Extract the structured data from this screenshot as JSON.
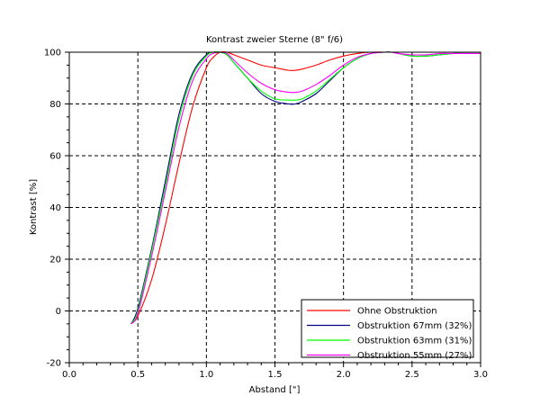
{
  "chart_data": {
    "type": "line",
    "title": "Kontrast zweier Sterne (8\" f/6)",
    "xlabel": "Abstand [\"]",
    "ylabel": "Kontrast [%]",
    "xlim": [
      0,
      3.0
    ],
    "ylim": [
      -20,
      100
    ],
    "xticks": [
      "0.0",
      "0.5",
      "1.0",
      "1.5",
      "2.0",
      "2.5",
      "3.0"
    ],
    "yticks": [
      "-20",
      "0",
      "20",
      "40",
      "60",
      "80",
      "100"
    ],
    "grid": true,
    "legend_position": "bottom-right",
    "series": [
      {
        "name": "Ohne Obstruktion",
        "color": "#ff0000",
        "x": [
          0.45,
          0.5,
          0.6,
          0.7,
          0.8,
          0.9,
          1.0,
          1.05,
          1.1,
          1.15,
          1.2,
          1.3,
          1.4,
          1.5,
          1.6,
          1.65,
          1.7,
          1.8,
          1.9,
          2.0,
          2.1,
          2.2,
          2.3,
          2.4,
          2.5,
          2.6,
          2.7,
          2.8,
          2.9,
          3.0
        ],
        "y": [
          -5,
          -2,
          12,
          33,
          57,
          79,
          94,
          98,
          100,
          100,
          99,
          97,
          95,
          94,
          93,
          93,
          93.5,
          95,
          97,
          98.5,
          99.5,
          100,
          100,
          100,
          100,
          100,
          100,
          100,
          100,
          100
        ]
      },
      {
        "name": "Obstruktion 67mm (32%)",
        "color": "#000080",
        "x": [
          0.45,
          0.5,
          0.6,
          0.7,
          0.8,
          0.9,
          1.0,
          1.05,
          1.1,
          1.15,
          1.2,
          1.3,
          1.4,
          1.5,
          1.6,
          1.65,
          1.7,
          1.8,
          1.9,
          2.0,
          2.1,
          2.2,
          2.3,
          2.35,
          2.4,
          2.5,
          2.6,
          2.7,
          2.8,
          2.9,
          3.0
        ],
        "y": [
          -5,
          1,
          24,
          50,
          76,
          92,
          99,
          100,
          100,
          99,
          96,
          90,
          84,
          81,
          80,
          80,
          81,
          84,
          89,
          94,
          97.5,
          99.5,
          100,
          100,
          99.5,
          98.5,
          98.5,
          99,
          99.5,
          99.5,
          99.5
        ]
      },
      {
        "name": "Obstruktion 63mm (31%)",
        "color": "#00ff00",
        "x": [
          0.45,
          0.5,
          0.6,
          0.7,
          0.8,
          0.9,
          1.0,
          1.05,
          1.1,
          1.15,
          1.2,
          1.3,
          1.4,
          1.5,
          1.6,
          1.65,
          1.7,
          1.8,
          1.9,
          2.0,
          2.1,
          2.2,
          2.3,
          2.35,
          2.4,
          2.5,
          2.6,
          2.7,
          2.8,
          2.9,
          3.0
        ],
        "y": [
          -5,
          0,
          23,
          48,
          74,
          91,
          98.5,
          100,
          100,
          99,
          96,
          90,
          85,
          82,
          81.5,
          81.5,
          82,
          85,
          89.5,
          94,
          97.5,
          99.5,
          100,
          100,
          99.5,
          98.5,
          98.5,
          99,
          99.5,
          99.5,
          99.5
        ]
      },
      {
        "name": "Obstruktion 55mm (27%)",
        "color": "#ff00ff",
        "x": [
          0.45,
          0.5,
          0.6,
          0.7,
          0.8,
          0.9,
          1.0,
          1.05,
          1.1,
          1.15,
          1.2,
          1.3,
          1.4,
          1.5,
          1.6,
          1.65,
          1.7,
          1.8,
          1.9,
          2.0,
          2.1,
          2.2,
          2.3,
          2.35,
          2.4,
          2.5,
          2.6,
          2.7,
          2.8,
          2.9,
          3.0
        ],
        "y": [
          -5,
          -1,
          21,
          46,
          71,
          89,
          97.5,
          99.5,
          100,
          99.5,
          97,
          92,
          88,
          85.5,
          84.5,
          84.5,
          85,
          87.5,
          91,
          95,
          98,
          99.5,
          100,
          100,
          99.5,
          99,
          99,
          99.5,
          99.5,
          99.5,
          99.5
        ]
      }
    ]
  }
}
